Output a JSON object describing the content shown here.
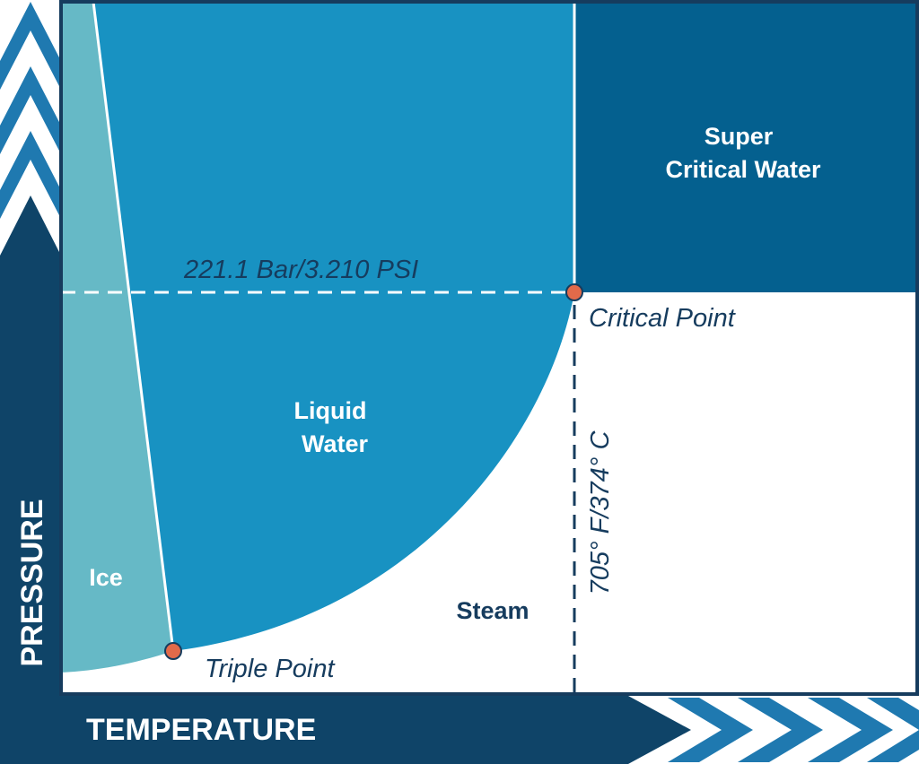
{
  "axes": {
    "y_label": "PRESSURE",
    "x_label": "TEMPERATURE"
  },
  "regions": {
    "ice": "Ice",
    "liquid_line1": "Liquid",
    "liquid_line2": "Water",
    "steam": "Steam",
    "supercritical_line1": "Super",
    "supercritical_line2": "Critical Water"
  },
  "annotations": {
    "critical_pressure": "221.1 Bar/3.210 PSI",
    "critical_temperature": "705° F/374° C",
    "critical_point": "Critical Point",
    "triple_point": "Triple Point"
  },
  "colors": {
    "ice": "#66b9c6",
    "liquid": "#1892c2",
    "supercritical": "#04608f",
    "frame": "#163c5e",
    "axis_arrow": "#0f4468",
    "chevron": "#1f79b0",
    "point_marker": "#e26a4a"
  }
}
